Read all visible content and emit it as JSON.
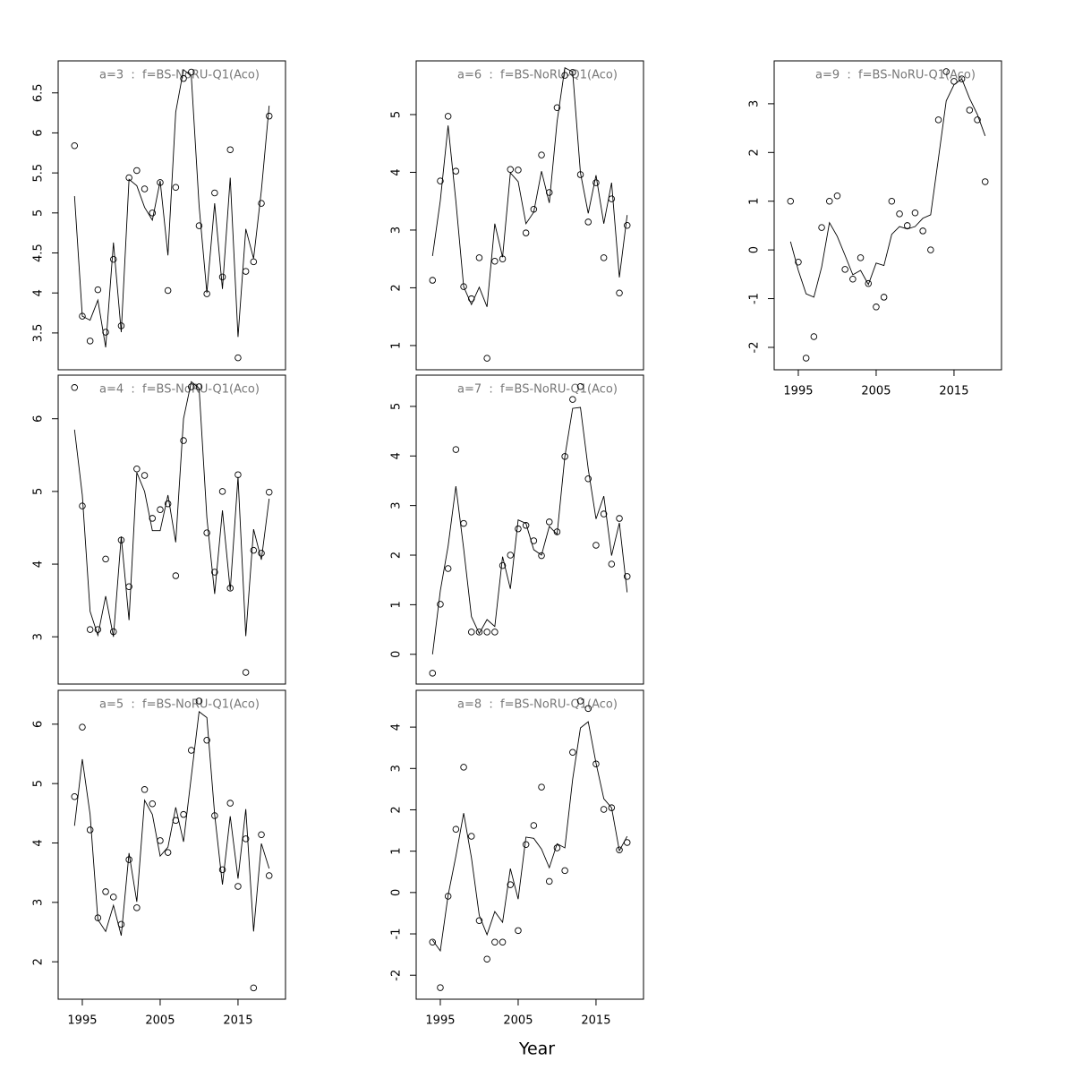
{
  "chart_data": [
    {
      "type": "line",
      "title": "a=3  :  f=BS-NoRU-Q1(Aco)",
      "x": [
        1994,
        1995,
        1996,
        1997,
        1998,
        1999,
        2000,
        2001,
        2002,
        2003,
        2004,
        2005,
        2006,
        2007,
        2008,
        2009,
        2010,
        2011,
        2012,
        2013,
        2014,
        2015,
        2016,
        2017,
        2018,
        2019
      ],
      "xlim": [
        1991.9,
        2021.1
      ],
      "ylim": [
        3.04,
        6.9
      ],
      "yticks": [
        3.5,
        4.0,
        4.5,
        5.0,
        5.5,
        6.0,
        6.5
      ],
      "series": [
        {
          "style": "points",
          "color": "#000000",
          "values": [
            5.84,
            3.71,
            3.4,
            4.04,
            3.51,
            4.42,
            3.59,
            5.44,
            5.53,
            5.3,
            5.0,
            5.38,
            4.03,
            5.32,
            6.68,
            6.76,
            4.84,
            3.99,
            5.25,
            4.2,
            5.79,
            3.19,
            4.27,
            4.39,
            5.12,
            6.21
          ]
        },
        {
          "style": "line",
          "color": "#000000",
          "values": [
            5.21,
            3.71,
            3.66,
            3.91,
            3.32,
            4.63,
            3.51,
            5.42,
            5.34,
            5.07,
            4.91,
            5.4,
            4.47,
            6.26,
            6.79,
            6.71,
            5.09,
            4.0,
            5.12,
            4.05,
            5.44,
            3.45,
            4.8,
            4.43,
            5.28,
            6.34
          ]
        }
      ]
    },
    {
      "type": "line",
      "title": "a=4  :  f=BS-NoRU-Q1(Aco)",
      "x": [
        1994,
        1995,
        1996,
        1997,
        1998,
        1999,
        2000,
        2001,
        2002,
        2003,
        2004,
        2005,
        2006,
        2007,
        2008,
        2009,
        2010,
        2011,
        2012,
        2013,
        2014,
        2015,
        2016,
        2017,
        2018,
        2019
      ],
      "xlim": [
        1991.9,
        2021.1
      ],
      "ylim": [
        2.35,
        6.6
      ],
      "yticks": [
        3,
        4,
        5,
        6
      ],
      "series": [
        {
          "style": "points",
          "color": "#000000",
          "values": [
            6.43,
            4.8,
            3.1,
            3.1,
            4.07,
            3.07,
            4.33,
            3.69,
            5.31,
            5.22,
            4.63,
            4.75,
            4.83,
            3.84,
            5.7,
            6.44,
            6.44,
            4.43,
            3.89,
            5.0,
            3.67,
            5.23,
            2.51,
            4.19,
            4.15,
            4.99
          ]
        },
        {
          "style": "line",
          "color": "#000000",
          "values": [
            5.85,
            4.95,
            3.35,
            3.02,
            3.56,
            3.0,
            4.38,
            3.23,
            5.26,
            5.0,
            4.46,
            4.46,
            4.95,
            4.3,
            6.0,
            6.51,
            6.42,
            4.64,
            3.59,
            4.74,
            3.64,
            5.2,
            3.01,
            4.48,
            4.06,
            4.9
          ]
        }
      ]
    },
    {
      "type": "line",
      "title": "a=5  :  f=BS-NoRU-Q1(Aco)",
      "x": [
        1994,
        1995,
        1996,
        1997,
        1998,
        1999,
        2000,
        2001,
        2002,
        2003,
        2004,
        2005,
        2006,
        2007,
        2008,
        2009,
        2010,
        2011,
        2012,
        2013,
        2014,
        2015,
        2016,
        2017,
        2018,
        2019
      ],
      "xlim": [
        1991.9,
        2021.1
      ],
      "ylim": [
        1.37,
        6.57
      ],
      "yticks": [
        2,
        3,
        4,
        5,
        6
      ],
      "xticks": [
        1995,
        2005,
        2015
      ],
      "series": [
        {
          "style": "points",
          "color": "#000000",
          "values": [
            4.78,
            5.95,
            4.22,
            2.74,
            3.18,
            3.09,
            2.63,
            3.72,
            2.91,
            4.9,
            4.66,
            4.04,
            3.84,
            4.38,
            4.48,
            5.56,
            6.39,
            5.73,
            4.46,
            3.55,
            4.67,
            3.27,
            4.07,
            1.56,
            4.14,
            3.45
          ]
        },
        {
          "style": "line",
          "color": "#000000",
          "values": [
            4.29,
            5.41,
            4.48,
            2.71,
            2.51,
            2.95,
            2.44,
            3.83,
            3.01,
            4.72,
            4.48,
            3.78,
            3.93,
            4.6,
            4.02,
            5.12,
            6.21,
            6.11,
            4.48,
            3.3,
            4.45,
            3.4,
            4.57,
            2.51,
            3.99,
            3.57
          ]
        }
      ]
    },
    {
      "type": "line",
      "title": "a=6  :  f=BS-NoRU-Q1(Aco)",
      "x": [
        1994,
        1995,
        1996,
        1997,
        1998,
        1999,
        2000,
        2001,
        2002,
        2003,
        2004,
        2005,
        2006,
        2007,
        2008,
        2009,
        2010,
        2011,
        2012,
        2013,
        2014,
        2015,
        2016,
        2017,
        2018,
        2019
      ],
      "xlim": [
        1991.9,
        2021.1
      ],
      "ylim": [
        0.58,
        5.93
      ],
      "yticks": [
        1,
        2,
        3,
        4,
        5
      ],
      "series": [
        {
          "style": "points",
          "color": "#000000",
          "values": [
            2.13,
            3.85,
            4.97,
            4.02,
            2.02,
            1.81,
            2.52,
            0.78,
            2.46,
            2.5,
            4.05,
            4.04,
            2.95,
            3.36,
            4.3,
            3.65,
            5.12,
            5.68,
            5.73,
            3.96,
            3.14,
            3.82,
            2.52,
            3.54,
            1.91,
            3.08
          ]
        },
        {
          "style": "line",
          "color": "#000000",
          "values": [
            2.55,
            3.51,
            4.81,
            3.5,
            2.02,
            1.71,
            2.01,
            1.67,
            3.11,
            2.53,
            3.99,
            3.84,
            3.11,
            3.31,
            4.02,
            3.47,
            4.88,
            5.81,
            5.74,
            3.99,
            3.29,
            3.95,
            3.11,
            3.82,
            2.18,
            3.26
          ]
        }
      ]
    },
    {
      "type": "line",
      "title": "a=7  :  f=BS-NoRU-Q1(Aco)",
      "x": [
        1994,
        1995,
        1996,
        1997,
        1998,
        1999,
        2000,
        2001,
        2002,
        2003,
        2004,
        2005,
        2006,
        2007,
        2008,
        2009,
        2010,
        2011,
        2012,
        2013,
        2014,
        2015,
        2016,
        2017,
        2018,
        2019
      ],
      "xlim": [
        1991.9,
        2021.1
      ],
      "ylim": [
        -0.6,
        5.63
      ],
      "yticks": [
        0,
        1,
        2,
        3,
        4,
        5
      ],
      "series": [
        {
          "style": "points",
          "color": "#000000",
          "values": [
            -0.38,
            1.01,
            1.73,
            4.13,
            2.64,
            0.45,
            0.45,
            0.45,
            0.45,
            1.79,
            2.0,
            2.53,
            2.6,
            2.29,
            1.99,
            2.67,
            2.47,
            3.99,
            5.14,
            5.4,
            3.54,
            2.2,
            2.83,
            1.82,
            2.74,
            1.57
          ]
        },
        {
          "style": "line",
          "color": "#000000",
          "values": [
            0.0,
            1.28,
            2.18,
            3.39,
            2.13,
            0.76,
            0.42,
            0.7,
            0.56,
            1.97,
            1.32,
            2.71,
            2.64,
            2.11,
            2.0,
            2.58,
            2.42,
            3.99,
            4.96,
            4.98,
            3.74,
            2.73,
            3.19,
            1.99,
            2.65,
            1.25
          ]
        }
      ]
    },
    {
      "type": "line",
      "title": "a=8  :  f=BS-NoRU-Q1(Aco)",
      "x": [
        1994,
        1995,
        1996,
        1997,
        1998,
        1999,
        2000,
        2001,
        2002,
        2003,
        2004,
        2005,
        2006,
        2007,
        2008,
        2009,
        2010,
        2011,
        2012,
        2013,
        2014,
        2015,
        2016,
        2017,
        2018,
        2019
      ],
      "xlim": [
        1991.9,
        2021.1
      ],
      "ylim": [
        -2.58,
        4.89
      ],
      "yticks": [
        -2,
        -1,
        0,
        1,
        2,
        3,
        4
      ],
      "xticks": [
        1995,
        2005,
        2015
      ],
      "series": [
        {
          "style": "points",
          "color": "#000000",
          "values": [
            -1.2,
            -2.3,
            -0.09,
            1.53,
            3.03,
            1.36,
            -0.68,
            -1.61,
            -1.2,
            -1.2,
            0.19,
            -0.92,
            1.16,
            1.62,
            2.55,
            0.27,
            1.08,
            0.53,
            3.39,
            4.63,
            4.45,
            3.11,
            2.01,
            2.05,
            1.03,
            1.21
          ]
        },
        {
          "style": "line",
          "color": "#000000",
          "values": [
            -1.15,
            -1.41,
            -0.07,
            0.88,
            1.92,
            0.84,
            -0.55,
            -1.02,
            -0.46,
            -0.72,
            0.58,
            -0.16,
            1.34,
            1.31,
            1.05,
            0.6,
            1.18,
            1.08,
            2.74,
            3.98,
            4.13,
            3.13,
            2.27,
            2.05,
            1.01,
            1.36
          ]
        }
      ]
    },
    {
      "type": "line",
      "title": "a=9  :  f=BS-NoRU-Q1(Aco)",
      "x": [
        1994,
        1995,
        1996,
        1997,
        1998,
        1999,
        2000,
        2001,
        2002,
        2003,
        2004,
        2005,
        2006,
        2007,
        2008,
        2009,
        2010,
        2011,
        2012,
        2013,
        2014,
        2015,
        2016,
        2017,
        2018,
        2019
      ],
      "xlim": [
        1991.9,
        2021.1
      ],
      "ylim": [
        -2.46,
        3.88
      ],
      "yticks": [
        -2,
        -1,
        0,
        1,
        2,
        3
      ],
      "xticks": [
        1995,
        2005,
        2015
      ],
      "series": [
        {
          "style": "points",
          "color": "#000000",
          "values": [
            1.0,
            -0.25,
            -2.22,
            -1.78,
            0.46,
            1.0,
            1.11,
            -0.4,
            -0.6,
            -0.16,
            -0.69,
            -1.17,
            -0.97,
            1.0,
            0.74,
            0.5,
            0.76,
            0.39,
            0.0,
            2.67,
            3.66,
            3.46,
            3.51,
            2.87,
            2.67,
            1.4
          ]
        },
        {
          "style": "line",
          "color": "#000000",
          "values": [
            0.17,
            -0.42,
            -0.9,
            -0.97,
            -0.35,
            0.56,
            0.28,
            -0.11,
            -0.51,
            -0.42,
            -0.71,
            -0.27,
            -0.32,
            0.32,
            0.48,
            0.43,
            0.48,
            0.65,
            0.72,
            1.88,
            3.06,
            3.39,
            3.51,
            3.11,
            2.78,
            2.34
          ]
        }
      ]
    }
  ],
  "xlabel": "Year"
}
